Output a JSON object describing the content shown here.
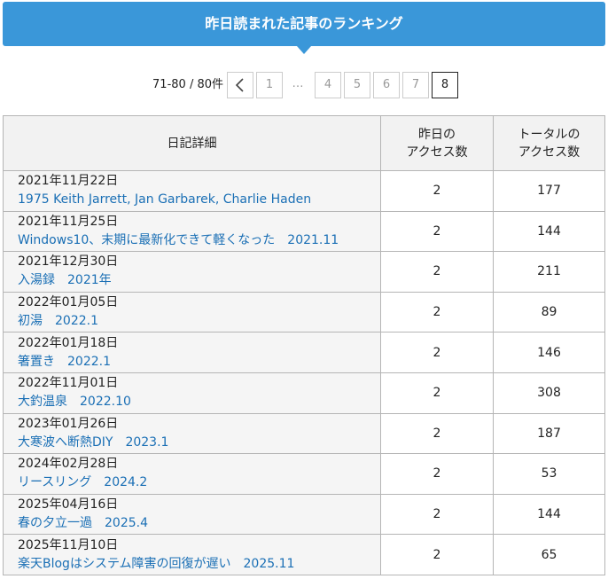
{
  "header": {
    "title": "昨日読まれた記事のランキング"
  },
  "pagination": {
    "summary": "71-80 / 80件",
    "pages": [
      {
        "label": "1"
      },
      {
        "label": "…",
        "ellipsis": true
      },
      {
        "label": "4"
      },
      {
        "label": "5"
      },
      {
        "label": "6"
      },
      {
        "label": "7"
      },
      {
        "label": "8",
        "current": true
      }
    ]
  },
  "table": {
    "columns": [
      [
        "日記詳細"
      ],
      [
        "昨日の",
        "アクセス数"
      ],
      [
        "トータルの",
        "アクセス数"
      ]
    ],
    "rows": [
      {
        "date": "2021年11月22日",
        "title": "1975 Keith Jarrett, Jan Garbarek, Charlie Haden",
        "yesterday": 2,
        "total": 177
      },
      {
        "date": "2021年11月25日",
        "title": "Windows10、末期に最新化できて軽くなった　2021.11",
        "yesterday": 2,
        "total": 144
      },
      {
        "date": "2021年12月30日",
        "title": "入湯録　2021年",
        "yesterday": 2,
        "total": 211
      },
      {
        "date": "2022年01月05日",
        "title": "初湯　2022.1",
        "yesterday": 2,
        "total": 89
      },
      {
        "date": "2022年01月18日",
        "title": "箸置き　2022.1",
        "yesterday": 2,
        "total": 146
      },
      {
        "date": "2022年11月01日",
        "title": "大釣温泉　2022.10",
        "yesterday": 2,
        "total": 308
      },
      {
        "date": "2023年01月26日",
        "title": "大寒波へ断熱DIY　2023.1",
        "yesterday": 2,
        "total": 187
      },
      {
        "date": "2024年02月28日",
        "title": "リースリング　2024.2",
        "yesterday": 2,
        "total": 53
      },
      {
        "date": "2025年04月16日",
        "title": "春の夕立一過　2025.4",
        "yesterday": 2,
        "total": 144
      },
      {
        "date": "2025年11月10日",
        "title": "楽天Blogはシステム障害の回復が遅い　2025.11",
        "yesterday": 2,
        "total": 65
      }
    ]
  }
}
